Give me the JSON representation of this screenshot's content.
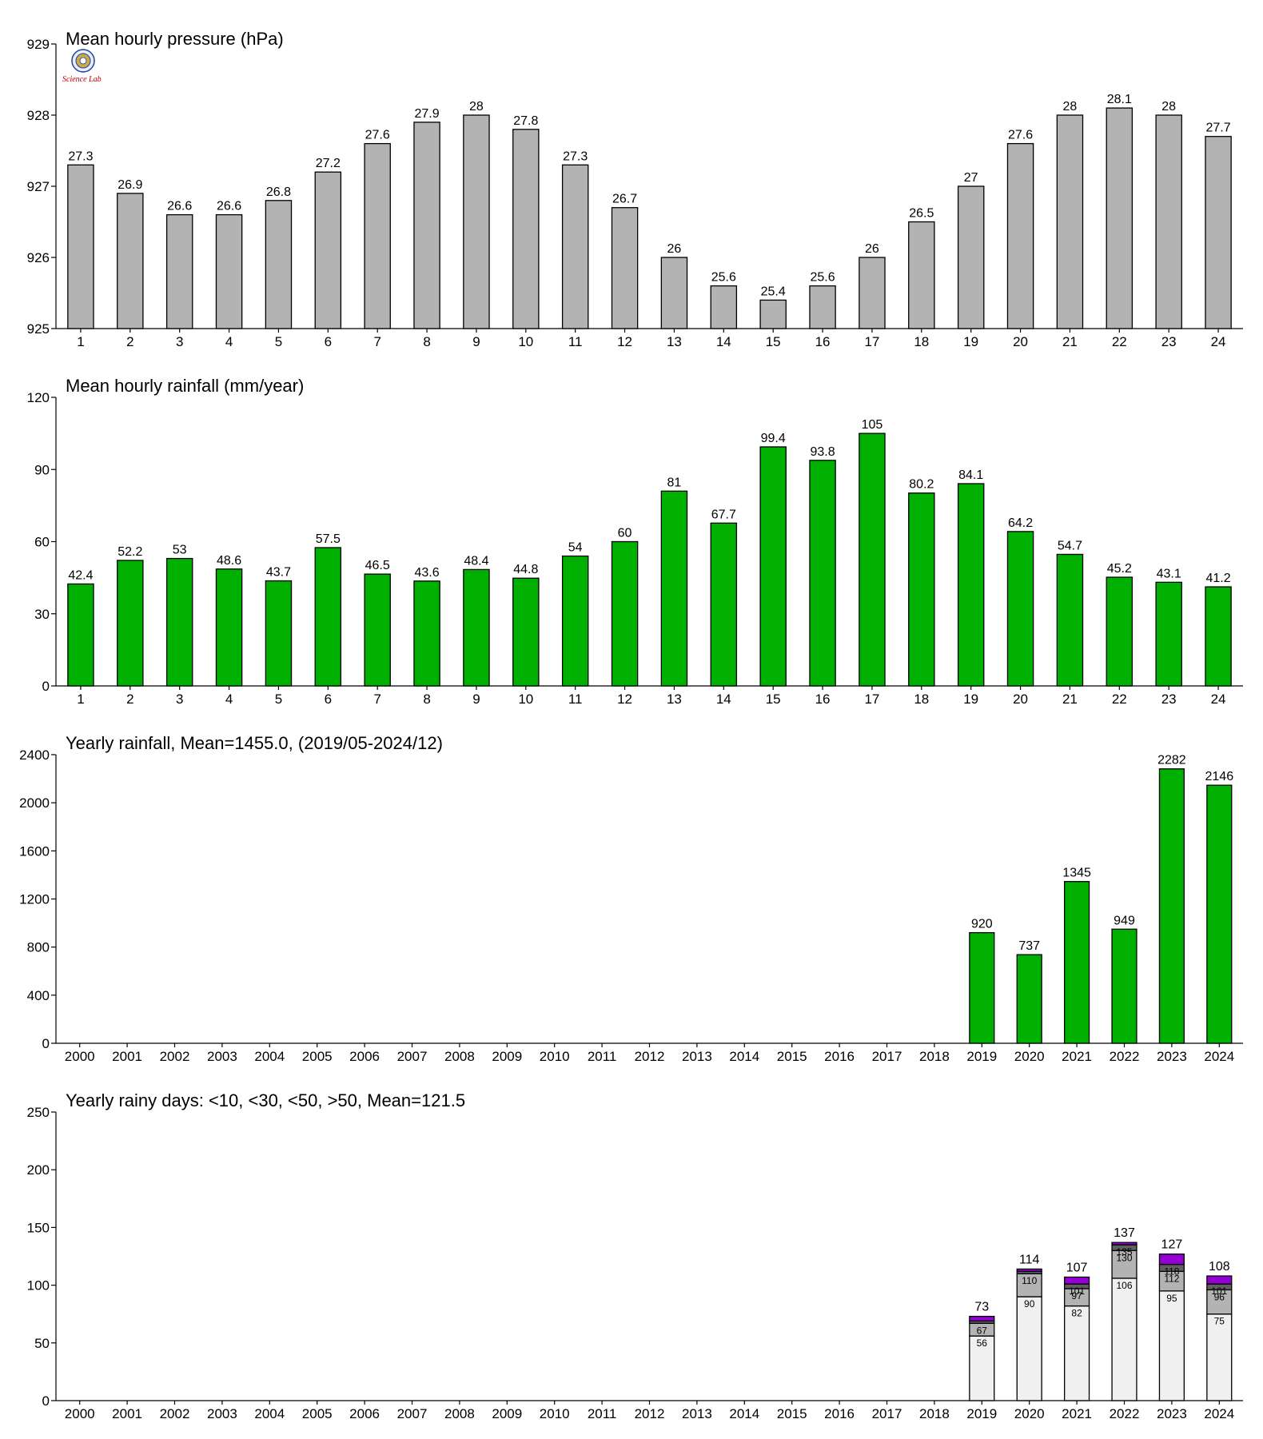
{
  "logo": {
    "text": "Science Lab"
  },
  "chart_data": [
    {
      "type": "bar",
      "title": "Mean hourly pressure (hPa)",
      "categories": [
        "1",
        "2",
        "3",
        "4",
        "5",
        "6",
        "7",
        "8",
        "9",
        "10",
        "11",
        "12",
        "13",
        "14",
        "15",
        "16",
        "17",
        "18",
        "19",
        "20",
        "21",
        "22",
        "23",
        "24"
      ],
      "values": [
        927.3,
        926.9,
        926.6,
        926.6,
        926.8,
        927.2,
        927.6,
        927.9,
        928.0,
        927.8,
        927.3,
        926.7,
        926.0,
        925.6,
        925.4,
        925.6,
        926.0,
        926.5,
        927.0,
        927.6,
        928.0,
        928.1,
        928.0,
        927.7
      ],
      "labels": [
        "27.3",
        "26.9",
        "26.6",
        "26.6",
        "26.8",
        "27.2",
        "27.6",
        "27.9",
        "28",
        "27.8",
        "27.3",
        "26.7",
        "26",
        "25.6",
        "25.4",
        "25.6",
        "26",
        "26.5",
        "27",
        "27.6",
        "28",
        "28.1",
        "28",
        "27.7"
      ],
      "ylim": [
        925,
        929
      ],
      "yticks": [
        "925",
        "926",
        "927",
        "928",
        "929"
      ],
      "color": "#b3b3b3",
      "grid": false
    },
    {
      "type": "bar",
      "title": "Mean hourly rainfall (mm/year)",
      "categories": [
        "1",
        "2",
        "3",
        "4",
        "5",
        "6",
        "7",
        "8",
        "9",
        "10",
        "11",
        "12",
        "13",
        "14",
        "15",
        "16",
        "17",
        "18",
        "19",
        "20",
        "21",
        "22",
        "23",
        "24"
      ],
      "values": [
        42.4,
        52.2,
        53,
        48.6,
        43.7,
        57.5,
        46.5,
        43.6,
        48.4,
        44.8,
        54,
        60,
        81,
        67.7,
        99.4,
        93.8,
        105,
        80.2,
        84.1,
        64.2,
        54.7,
        45.2,
        43.1,
        41.2
      ],
      "labels": [
        "42.4",
        "52.2",
        "53",
        "48.6",
        "43.7",
        "57.5",
        "46.5",
        "43.6",
        "48.4",
        "44.8",
        "54",
        "60",
        "81",
        "67.7",
        "99.4",
        "93.8",
        "105",
        "80.2",
        "84.1",
        "64.2",
        "54.7",
        "45.2",
        "43.1",
        "41.2"
      ],
      "ylim": [
        0,
        120
      ],
      "yticks": [
        "0",
        "30",
        "60",
        "90",
        "120"
      ],
      "color": "#00b000",
      "grid": false
    },
    {
      "type": "bar",
      "title": "Yearly rainfall, Mean=1455.0, (2019/05-2024/12)",
      "categories": [
        "2000",
        "2001",
        "2002",
        "2003",
        "2004",
        "2005",
        "2006",
        "2007",
        "2008",
        "2009",
        "2010",
        "2011",
        "2012",
        "2013",
        "2014",
        "2015",
        "2016",
        "2017",
        "2018",
        "2019",
        "2020",
        "2021",
        "2022",
        "2023",
        "2024"
      ],
      "values": [
        null,
        null,
        null,
        null,
        null,
        null,
        null,
        null,
        null,
        null,
        null,
        null,
        null,
        null,
        null,
        null,
        null,
        null,
        null,
        920,
        737,
        1345,
        949,
        2282,
        2146
      ],
      "labels": [
        "",
        "",
        "",
        "",
        "",
        "",
        "",
        "",
        "",
        "",
        "",
        "",
        "",
        "",
        "",
        "",
        "",
        "",
        "",
        "920",
        "737",
        "1345",
        "949",
        "2282",
        "2146"
      ],
      "ylim": [
        0,
        2400
      ],
      "yticks": [
        "0",
        "400",
        "800",
        "1200",
        "1600",
        "2000",
        "2400"
      ],
      "color": "#00b000",
      "grid": false
    },
    {
      "type": "bar",
      "stacked": true,
      "title": "Yearly rainy days: <10, <30, <50, >50, Mean=121.5",
      "categories": [
        "2000",
        "2001",
        "2002",
        "2003",
        "2004",
        "2005",
        "2006",
        "2007",
        "2008",
        "2009",
        "2010",
        "2011",
        "2012",
        "2013",
        "2014",
        "2015",
        "2016",
        "2017",
        "2018",
        "2019",
        "2020",
        "2021",
        "2022",
        "2023",
        "2024"
      ],
      "cumulative": [
        null,
        null,
        null,
        null,
        null,
        null,
        null,
        null,
        null,
        null,
        null,
        null,
        null,
        null,
        null,
        null,
        null,
        null,
        null,
        [
          56,
          67,
          69,
          73
        ],
        [
          90,
          110,
          112,
          114
        ],
        [
          82,
          97,
          101,
          107
        ],
        [
          106,
          130,
          135,
          137
        ],
        [
          95,
          112,
          118,
          127
        ],
        [
          75,
          96,
          101,
          108
        ]
      ],
      "segment_labels": [
        null,
        null,
        null,
        null,
        null,
        null,
        null,
        null,
        null,
        null,
        null,
        null,
        null,
        null,
        null,
        null,
        null,
        null,
        null,
        [
          "56",
          "67",
          "",
          ""
        ],
        [
          "90",
          "110",
          "",
          ""
        ],
        [
          "82",
          "97",
          "101",
          ""
        ],
        [
          "106",
          "130",
          "135",
          ""
        ],
        [
          "95",
          "112",
          "118",
          ""
        ],
        [
          "75",
          "96",
          "101",
          ""
        ]
      ],
      "totals": [
        "",
        "",
        "",
        "",
        "",
        "",
        "",
        "",
        "",
        "",
        "",
        "",
        "",
        "",
        "",
        "",
        "",
        "",
        "",
        "73",
        "114",
        "107",
        "137",
        "127",
        "108"
      ],
      "series_colors": [
        "#f0f0f0",
        "#b3b3b3",
        "#606060",
        "#9400d3"
      ],
      "ylim": [
        0,
        250
      ],
      "yticks": [
        "0",
        "50",
        "100",
        "150",
        "200",
        "250"
      ],
      "grid": false
    }
  ]
}
